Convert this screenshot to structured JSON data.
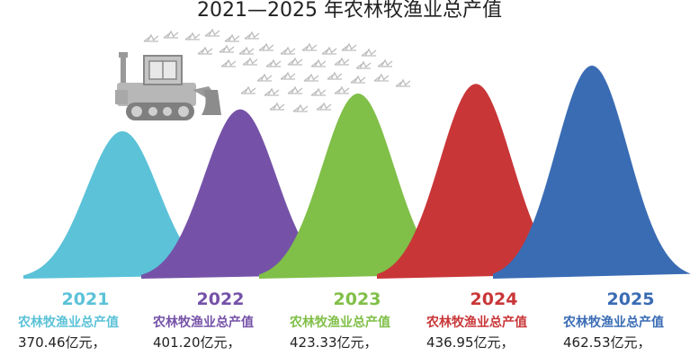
{
  "title": "2021—2025 年农林牧渔业总产值",
  "chart_data": {
    "type": "area",
    "title": "2021—2025 年农林牧渔业总产值",
    "categories": [
      "2021",
      "2022",
      "2023",
      "2024",
      "2025"
    ],
    "series": [
      {
        "name": "农林牧渔业总产值",
        "values": [
          370.46,
          401.2,
          423.33,
          436.95,
          462.53
        ],
        "unit": "亿元"
      }
    ],
    "value_labels": [
      "370.46亿元，",
      "401.20亿元，",
      "423.33亿元，",
      "436.95亿元，",
      "462.53亿元，"
    ],
    "series_label": "农林牧渔业总产值",
    "colors": [
      "#5bc2d8",
      "#7552a8",
      "#80bf48",
      "#c93638",
      "#3a6cb4"
    ],
    "xlabel": "",
    "ylabel": "",
    "legend": "none",
    "grid": false
  },
  "illustration": {
    "icon": "bulldozer-icon",
    "particles": "wheat-stalks"
  }
}
